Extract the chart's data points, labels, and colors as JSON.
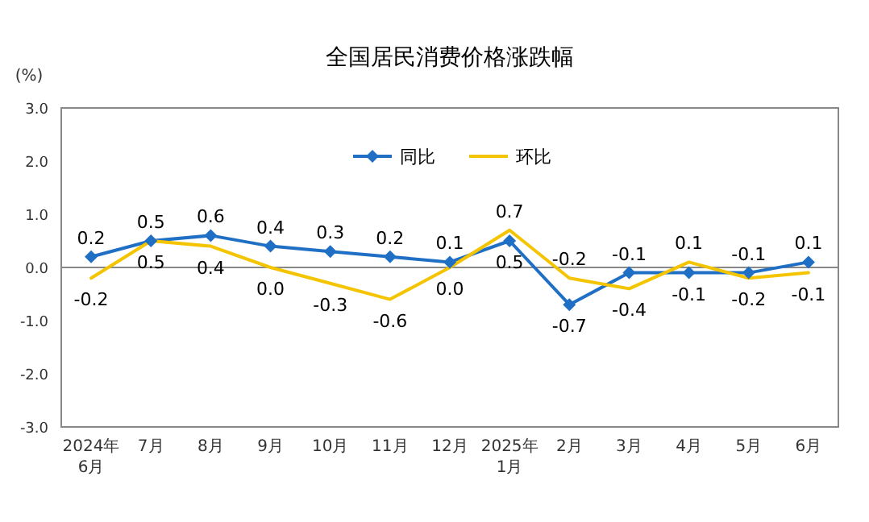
{
  "chart_data": {
    "type": "line",
    "title": "全国居民消费价格涨跌幅",
    "ylabel": "(%)",
    "categories": [
      "2024年\n6月",
      "7月",
      "8月",
      "9月",
      "10月",
      "11月",
      "12月",
      "2025年\n1月",
      "2月",
      "3月",
      "4月",
      "5月",
      "6月"
    ],
    "series": [
      {
        "name": "同比",
        "color": "#1f6fc5",
        "marker": "diamond",
        "values": [
          0.2,
          0.5,
          0.6,
          0.4,
          0.3,
          0.2,
          0.1,
          0.5,
          -0.7,
          -0.1,
          -0.1,
          -0.1,
          0.1
        ],
        "value_labels": [
          "0.2",
          "0.5",
          "0.6",
          "0.4",
          "0.3",
          "0.2",
          "0.1",
          "0.5",
          "-0.7",
          "-0.1",
          "-0.1",
          "-0.1",
          "0.1"
        ]
      },
      {
        "name": "环比",
        "color": "#f5c400",
        "marker": "none",
        "values": [
          -0.2,
          0.5,
          0.4,
          0.0,
          -0.3,
          -0.6,
          0.0,
          0.7,
          -0.2,
          -0.4,
          0.1,
          -0.2,
          -0.1
        ],
        "value_labels": [
          "-0.2",
          "0.5",
          "0.4",
          "0.0",
          "-0.3",
          "-0.6",
          "0.0",
          "0.7",
          "-0.2",
          "-0.4",
          "0.1",
          "-0.2",
          "-0.1"
        ]
      }
    ],
    "ylim": [
      -3,
      3
    ],
    "yticks": [
      {
        "value": -3,
        "label": "-3.0"
      },
      {
        "value": -2,
        "label": "-2.0"
      },
      {
        "value": -1,
        "label": "-1.0"
      },
      {
        "value": 0,
        "label": "0.0"
      },
      {
        "value": 1,
        "label": "1.0"
      },
      {
        "value": 2,
        "label": "2.0"
      },
      {
        "value": 3,
        "label": "3.0"
      }
    ],
    "legend": "top"
  }
}
